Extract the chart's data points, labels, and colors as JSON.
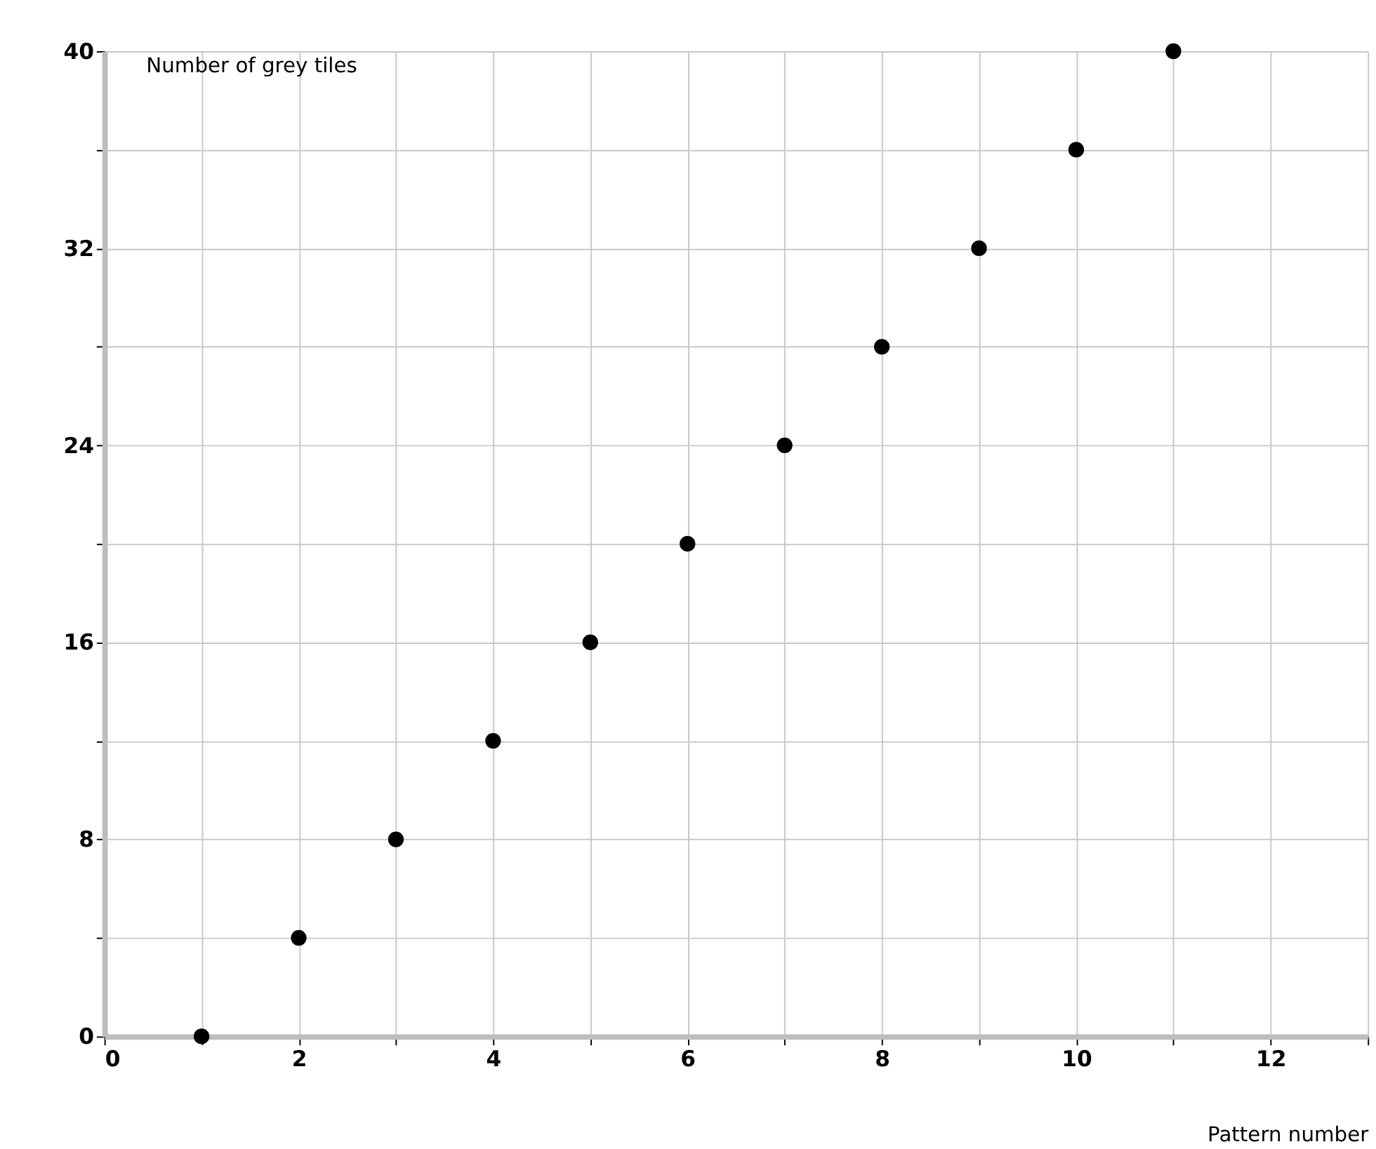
{
  "chart_data": {
    "type": "scatter",
    "xlabel": "Pattern number",
    "ylabel": "Number of grey tiles",
    "x": [
      1,
      2,
      3,
      4,
      5,
      6,
      7,
      8,
      9,
      10,
      11
    ],
    "series": [
      {
        "color": "#000000",
        "values": [
          0,
          4,
          8,
          12,
          16,
          20,
          24,
          28,
          32,
          36,
          40
        ]
      }
    ],
    "xlim": [
      0,
      13
    ],
    "xticks": [
      0,
      {
        "value": 1,
        "label": null
      },
      2,
      {
        "value": 3,
        "label": null
      },
      4,
      {
        "value": 5,
        "label": null
      },
      6,
      {
        "value": 7,
        "label": null
      },
      8,
      {
        "value": 9,
        "label": null
      },
      10,
      {
        "value": 11,
        "label": null
      },
      12,
      {
        "value": 13,
        "label": null
      }
    ],
    "ylim": [
      0,
      40
    ],
    "yticks": [
      0,
      {
        "value": 4,
        "label": null
      },
      8,
      {
        "value": 12,
        "label": null
      },
      16,
      {
        "value": 20,
        "label": null
      },
      24,
      {
        "value": 28,
        "label": null
      },
      32,
      {
        "value": 36,
        "label": null
      },
      40
    ],
    "grid": true,
    "marker": "circle"
  }
}
